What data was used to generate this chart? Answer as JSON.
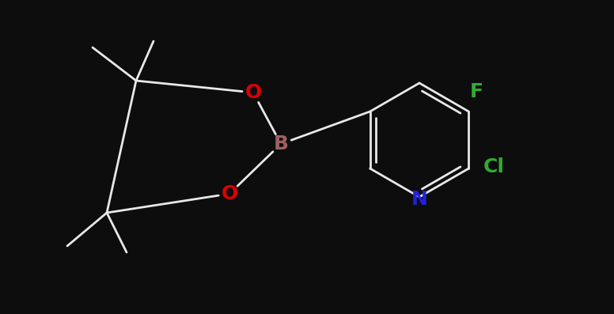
{
  "bg": "#0d0d0d",
  "bc": "#e8e8e8",
  "N_color": "#2222dd",
  "O_color": "#dd0000",
  "B_color": "#9e6060",
  "F_color": "#33aa33",
  "Cl_color": "#33aa33",
  "lw": 2.0,
  "fs": 16,
  "xlim": [
    0.0,
    7.76
  ],
  "ylim": [
    0.0,
    3.97
  ]
}
